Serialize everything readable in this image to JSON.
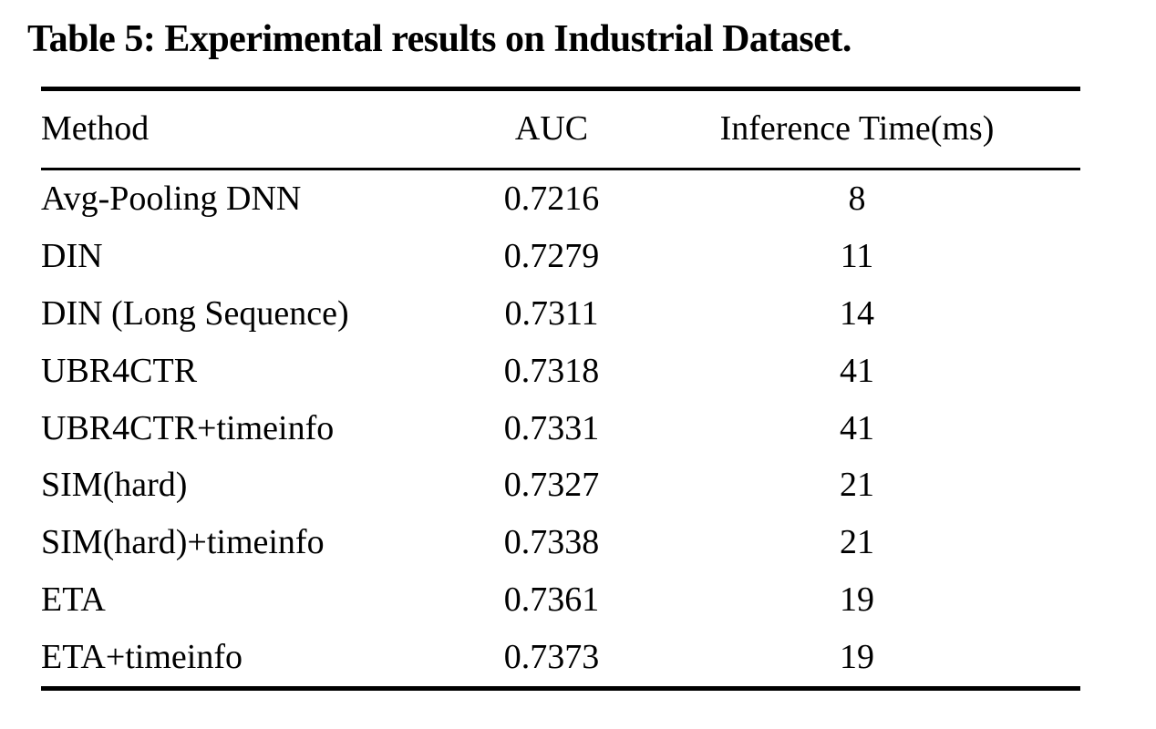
{
  "caption": "Table 5: Experimental results on Industrial Dataset.",
  "table": {
    "headers": {
      "method": "Method",
      "auc": "AUC",
      "inference_time": "Inference Time(ms)"
    },
    "rows": [
      {
        "method": "Avg-Pooling DNN",
        "auc": "0.7216",
        "inference_time_ms": "8"
      },
      {
        "method": "DIN",
        "auc": "0.7279",
        "inference_time_ms": "11"
      },
      {
        "method": "DIN (Long Sequence)",
        "auc": "0.7311",
        "inference_time_ms": "14"
      },
      {
        "method": "UBR4CTR",
        "auc": "0.7318",
        "inference_time_ms": "41"
      },
      {
        "method": "UBR4CTR+timeinfo",
        "auc": "0.7331",
        "inference_time_ms": "41"
      },
      {
        "method": "SIM(hard)",
        "auc": "0.7327",
        "inference_time_ms": "21"
      },
      {
        "method": "SIM(hard)+timeinfo",
        "auc": "0.7338",
        "inference_time_ms": "21"
      },
      {
        "method": "ETA",
        "auc": "0.7361",
        "inference_time_ms": "19"
      },
      {
        "method": "ETA+timeinfo",
        "auc": "0.7373",
        "inference_time_ms": "19"
      }
    ]
  }
}
